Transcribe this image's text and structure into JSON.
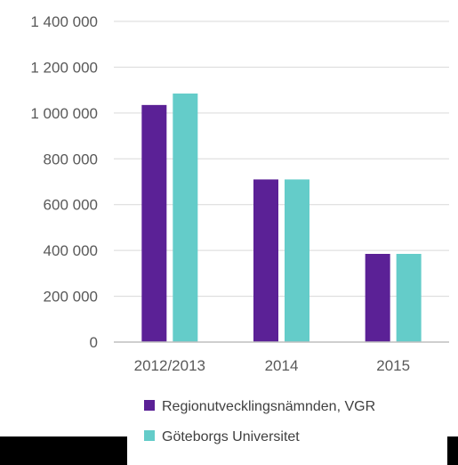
{
  "chart_data": {
    "type": "bar",
    "categories": [
      "2012/2013",
      "2014",
      "2015"
    ],
    "series": [
      {
        "name": "Regionutvecklingsnämnden, VGR",
        "values": [
          1035000,
          710000,
          385000
        ],
        "color": "#5b2196"
      },
      {
        "name": "Göteborgs Universitet",
        "values": [
          1085000,
          710000,
          385000
        ],
        "color": "#64ccc9"
      }
    ],
    "yticks": [
      "0",
      "200 000",
      "400 000",
      "600 000",
      "800 000",
      "1 000 000",
      "1 200 000",
      "1 400 000"
    ],
    "ylim": [
      0,
      1400000
    ],
    "grid": true,
    "legend_position": "bottom"
  }
}
